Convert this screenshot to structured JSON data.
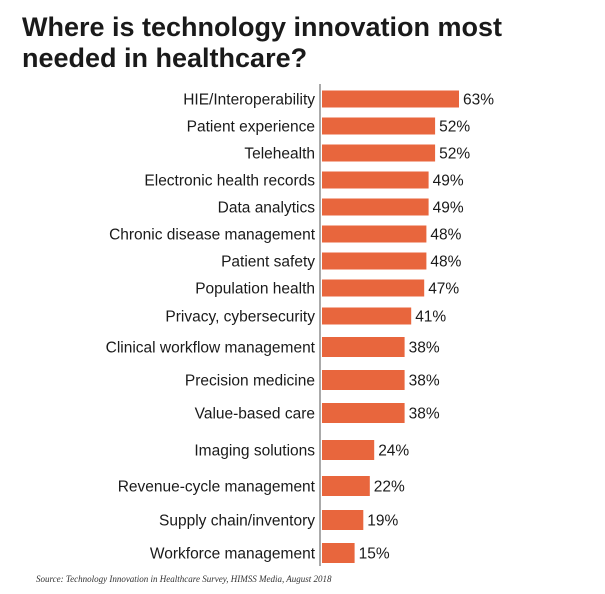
{
  "title": "Where is technology innovation most needed in healthcare?",
  "source": "Source: Technology Innovation in Healthcare Survey, HIMSS Media, August 2018",
  "colors": {
    "bar": "#e8663d",
    "axis": "#555555",
    "text": "#1a1a1a"
  },
  "chart_data": {
    "type": "bar",
    "orientation": "horizontal",
    "title": "Where is technology innovation most needed in healthcare?",
    "categories": [
      "HIE/Interoperability",
      "Patient experience",
      "Telehealth",
      "Electronic health records",
      "Data analytics",
      "Chronic disease management",
      "Patient safety",
      "Population health",
      "Privacy, cybersecurity",
      "Clinical workflow management",
      "Precision medicine",
      "Value-based care",
      "Imaging solutions",
      "Revenue-cycle management",
      "Supply chain/inventory",
      "Workforce management"
    ],
    "values": [
      63,
      52,
      52,
      49,
      49,
      48,
      48,
      47,
      41,
      38,
      38,
      38,
      24,
      22,
      19,
      15
    ],
    "value_labels": [
      "63%",
      "52%",
      "52%",
      "49%",
      "49%",
      "48%",
      "48%",
      "47%",
      "41%",
      "38%",
      "38%",
      "38%",
      "24%",
      "22%",
      "19%",
      "15%"
    ],
    "unit": "%",
    "xlabel": "",
    "ylabel": "",
    "xlim": [
      0,
      63
    ],
    "grid": false,
    "legend": "none"
  }
}
